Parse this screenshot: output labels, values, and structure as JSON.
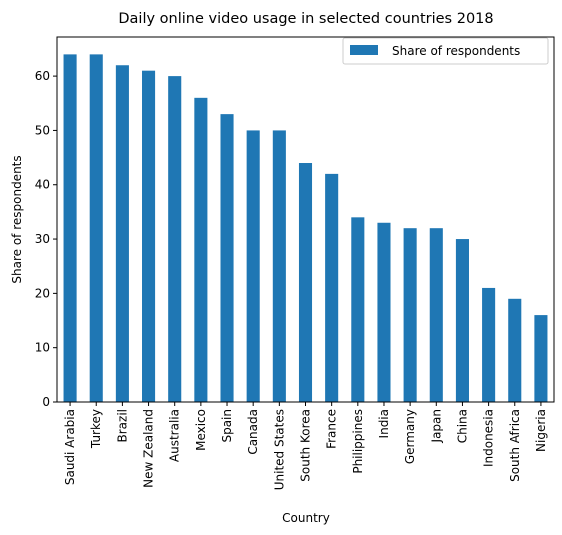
{
  "chart_data": {
    "type": "bar",
    "title": "Daily online video usage in selected countries 2018",
    "xlabel": "Country",
    "ylabel": "Share of respondents",
    "categories": [
      "Saudi Arabia",
      "Turkey",
      "Brazil",
      "New Zealand",
      "Australia",
      "Mexico",
      "Spain",
      "Canada",
      "United States",
      "South Korea",
      "France",
      "Philippines",
      "India",
      "Germany",
      "Japan",
      "China",
      "Indonesia",
      "South Africa",
      "Nigeria"
    ],
    "series": [
      {
        "name": "Share of respondents",
        "color": "#1f77b4",
        "values": [
          64,
          64,
          62,
          61,
          60,
          56,
          53,
          50,
          50,
          44,
          42,
          34,
          33,
          32,
          32,
          30,
          21,
          19,
          16
        ]
      }
    ],
    "ylim": [
      0,
      67.2
    ],
    "yticks": [
      0,
      10,
      20,
      30,
      40,
      50,
      60
    ],
    "grid": false,
    "legend_position": "top-right"
  }
}
